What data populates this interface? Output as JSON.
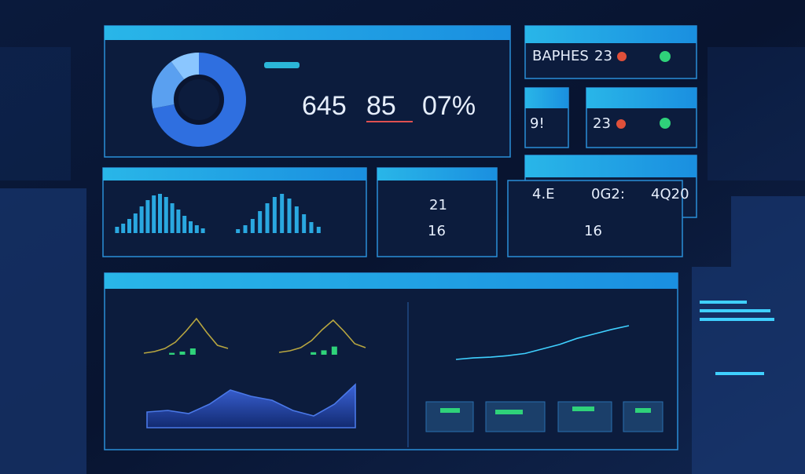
{
  "kpi_panel": {
    "numbers": [
      "645",
      "85",
      "07%"
    ],
    "donut": [
      72,
      18,
      10
    ]
  },
  "cards": {
    "top_label": "BAPHES",
    "top_value": "23",
    "left_value": "9!",
    "right_value": "23"
  },
  "stats": [
    "4.E",
    "0G2:",
    "4Q20"
  ],
  "middle": {
    "bars_left": [
      8,
      12,
      18,
      25,
      34,
      42,
      48,
      50,
      46,
      38,
      30,
      22,
      15,
      10,
      6
    ],
    "bars_right": [
      5,
      10,
      18,
      28,
      38,
      46,
      50,
      44,
      34,
      24,
      14,
      8
    ],
    "values": [
      "21",
      "16",
      "16"
    ]
  },
  "bottom": {
    "mini_left": {
      "bars": [
        6,
        10,
        20
      ],
      "line": [
        2,
        4,
        8,
        16,
        30,
        46,
        28,
        12,
        8
      ]
    },
    "mini_right": {
      "bars": [
        8,
        14,
        26
      ],
      "line": [
        3,
        5,
        9,
        18,
        32,
        44,
        30,
        14,
        9
      ]
    },
    "area": [
      20,
      22,
      18,
      30,
      48,
      40,
      35,
      22,
      15,
      30,
      55
    ],
    "trend": [
      0,
      2,
      3,
      5,
      8,
      14,
      20,
      28,
      34,
      40,
      45
    ]
  }
}
